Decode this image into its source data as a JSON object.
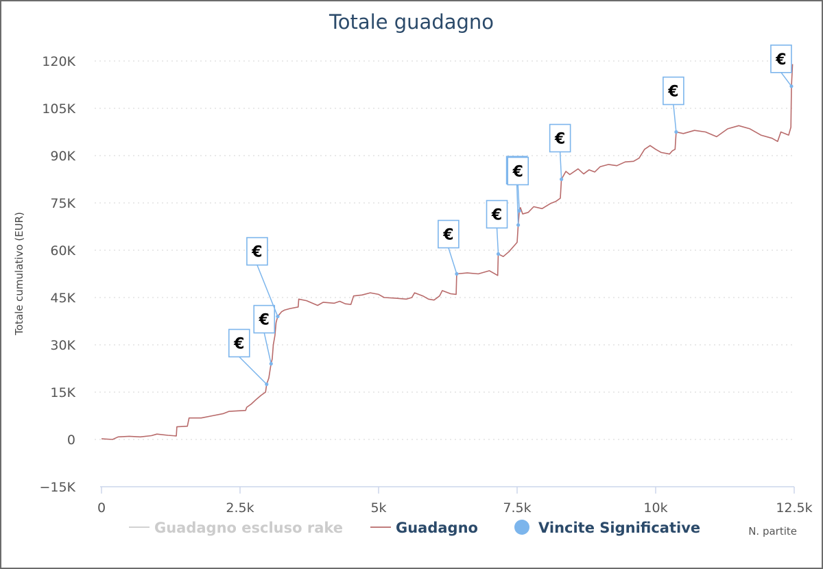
{
  "chart_data": {
    "type": "line",
    "title": "Totale guadagno",
    "ylabel": "Totale cumulativo (EUR)",
    "xlabel": "N. partite",
    "ylim": [
      -15000,
      120000
    ],
    "xlim": [
      0,
      12500
    ],
    "yticks": [
      {
        "value": -15000,
        "label": "−15K"
      },
      {
        "value": 0,
        "label": "0"
      },
      {
        "value": 15000,
        "label": "15K"
      },
      {
        "value": 30000,
        "label": "30K"
      },
      {
        "value": 45000,
        "label": "45K"
      },
      {
        "value": 60000,
        "label": "60K"
      },
      {
        "value": 75000,
        "label": "75K"
      },
      {
        "value": 90000,
        "label": "90K"
      },
      {
        "value": 105000,
        "label": "105K"
      },
      {
        "value": 120000,
        "label": "120K"
      }
    ],
    "xticks": [
      {
        "value": 0,
        "label": "0"
      },
      {
        "value": 2500,
        "label": "2.5k"
      },
      {
        "value": 5000,
        "label": "5k"
      },
      {
        "value": 7500,
        "label": "7.5k"
      },
      {
        "value": 10000,
        "label": "10k"
      },
      {
        "value": 12500,
        "label": "12.5k"
      }
    ],
    "grid": true,
    "legend_position": "bottom",
    "legend": [
      {
        "name": "Guadagno escluso rake",
        "color": "#cccccc",
        "symbol": "line",
        "hidden": true
      },
      {
        "name": "Guadagno",
        "color": "#b86a6a",
        "symbol": "line"
      },
      {
        "name": "Vincite Significative",
        "color": "#7cb5ec",
        "symbol": "circle"
      }
    ],
    "series": [
      {
        "name": "Guadagno",
        "color": "#b86a6a",
        "points": [
          [
            0,
            200
          ],
          [
            200,
            0
          ],
          [
            300,
            800
          ],
          [
            500,
            1000
          ],
          [
            700,
            800
          ],
          [
            900,
            1200
          ],
          [
            1000,
            1700
          ],
          [
            1200,
            1300
          ],
          [
            1350,
            1100
          ],
          [
            1360,
            4000
          ],
          [
            1550,
            4200
          ],
          [
            1580,
            6800
          ],
          [
            1800,
            6800
          ],
          [
            2000,
            7500
          ],
          [
            2200,
            8200
          ],
          [
            2300,
            8900
          ],
          [
            2600,
            9200
          ],
          [
            2620,
            10200
          ],
          [
            2700,
            11200
          ],
          [
            2800,
            12800
          ],
          [
            2880,
            14000
          ],
          [
            2960,
            15000
          ],
          [
            2980,
            17500
          ],
          [
            3020,
            19500
          ],
          [
            3060,
            24000
          ],
          [
            3080,
            25500
          ],
          [
            3100,
            30000
          ],
          [
            3130,
            33000
          ],
          [
            3150,
            37000
          ],
          [
            3180,
            39000
          ],
          [
            3250,
            40500
          ],
          [
            3300,
            41000
          ],
          [
            3400,
            41500
          ],
          [
            3550,
            42000
          ],
          [
            3560,
            44500
          ],
          [
            3700,
            44000
          ],
          [
            3900,
            42500
          ],
          [
            4000,
            43500
          ],
          [
            4200,
            43200
          ],
          [
            4300,
            43800
          ],
          [
            4400,
            43000
          ],
          [
            4500,
            42800
          ],
          [
            4550,
            45500
          ],
          [
            4700,
            45800
          ],
          [
            4850,
            46500
          ],
          [
            5000,
            46000
          ],
          [
            5100,
            45000
          ],
          [
            5300,
            44800
          ],
          [
            5500,
            44500
          ],
          [
            5600,
            45000
          ],
          [
            5650,
            46500
          ],
          [
            5800,
            45500
          ],
          [
            5900,
            44500
          ],
          [
            6000,
            44200
          ],
          [
            6100,
            45500
          ],
          [
            6150,
            47200
          ],
          [
            6300,
            46200
          ],
          [
            6400,
            46000
          ],
          [
            6410,
            52500
          ],
          [
            6600,
            52800
          ],
          [
            6800,
            52500
          ],
          [
            7000,
            53500
          ],
          [
            7150,
            52000
          ],
          [
            7160,
            58800
          ],
          [
            7250,
            58000
          ],
          [
            7350,
            59500
          ],
          [
            7450,
            61500
          ],
          [
            7500,
            62500
          ],
          [
            7520,
            68000
          ],
          [
            7540,
            72500
          ],
          [
            7560,
            73500
          ],
          [
            7600,
            71500
          ],
          [
            7700,
            72000
          ],
          [
            7800,
            73800
          ],
          [
            7950,
            73200
          ],
          [
            8100,
            74800
          ],
          [
            8200,
            75500
          ],
          [
            8280,
            76500
          ],
          [
            8300,
            82500
          ],
          [
            8380,
            85000
          ],
          [
            8450,
            84000
          ],
          [
            8600,
            85800
          ],
          [
            8700,
            84200
          ],
          [
            8800,
            85500
          ],
          [
            8900,
            84800
          ],
          [
            9000,
            86500
          ],
          [
            9150,
            87200
          ],
          [
            9300,
            86800
          ],
          [
            9450,
            88000
          ],
          [
            9600,
            88200
          ],
          [
            9700,
            89200
          ],
          [
            9800,
            92000
          ],
          [
            9900,
            93200
          ],
          [
            10000,
            92000
          ],
          [
            10100,
            91000
          ],
          [
            10250,
            90500
          ],
          [
            10300,
            91500
          ],
          [
            10350,
            92000
          ],
          [
            10370,
            97500
          ],
          [
            10500,
            97000
          ],
          [
            10700,
            98000
          ],
          [
            10900,
            97500
          ],
          [
            11100,
            96000
          ],
          [
            11300,
            98500
          ],
          [
            11500,
            99500
          ],
          [
            11700,
            98500
          ],
          [
            11900,
            96500
          ],
          [
            12100,
            95500
          ],
          [
            12200,
            94500
          ],
          [
            12260,
            97500
          ],
          [
            12400,
            96500
          ],
          [
            12440,
            99000
          ],
          [
            12450,
            112000
          ],
          [
            12470,
            119000
          ]
        ]
      },
      {
        "name": "Vincite Significative",
        "color": "#7cb5ec",
        "points": [
          [
            2980,
            17500
          ],
          [
            3060,
            24000
          ],
          [
            3180,
            39000
          ],
          [
            6410,
            52500
          ],
          [
            7160,
            58800
          ],
          [
            7520,
            68000
          ],
          [
            7540,
            72500
          ],
          [
            8300,
            82500
          ],
          [
            10370,
            97500
          ],
          [
            12450,
            112000
          ]
        ],
        "marker_symbol": "€"
      }
    ]
  }
}
